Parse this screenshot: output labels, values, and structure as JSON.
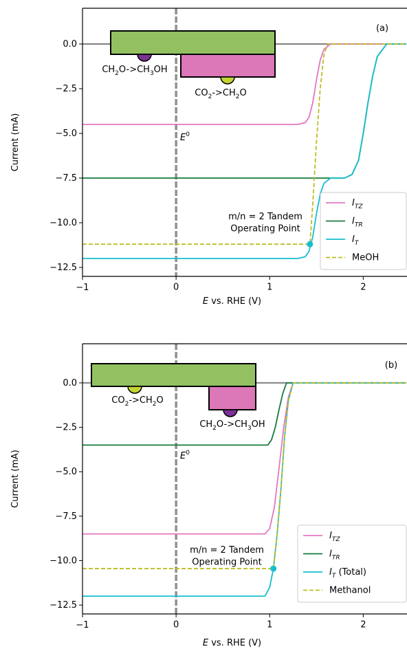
{
  "chart_data": [
    {
      "type": "line",
      "panel_label": "(a)",
      "xlabel": "$E$ vs. RHE (V)",
      "ylabel": "Current (mA)",
      "xlim": [
        -1,
        2.46
      ],
      "ylim": [
        -13,
        2
      ],
      "xticks": [
        {
          "value": -1,
          "label": "−1"
        },
        0,
        1,
        2
      ],
      "yticks": [
        {
          "value": 0,
          "label": "0.0"
        },
        {
          "value": -2.5,
          "label": "−2.5"
        },
        {
          "value": -5,
          "label": "−5.0"
        },
        {
          "value": -7.5,
          "label": "−7.5"
        },
        {
          "value": -10,
          "label": "−10.0"
        },
        {
          "value": -12.5,
          "label": "−12.5"
        }
      ],
      "hlines": [
        0
      ],
      "vlines": [
        0
      ],
      "e0_label": "$E^{0}$",
      "annotation": "m/n = 2 Tandem\nOperating Point",
      "operating_point": {
        "x": 1.43,
        "y": -11.2,
        "color": "#17becf"
      },
      "inset_labels": [
        "CH$_2$O->CH$_3$OH",
        "CO$_2$->CH$_2$O"
      ],
      "legend": "lower right",
      "series": [
        {
          "name": "$I_{TZ}$",
          "color": "#e377c2",
          "dash": false,
          "x": [
            -1,
            1.3,
            1.38,
            1.42,
            1.46,
            1.5,
            1.54,
            1.58,
            1.65,
            2.46
          ],
          "values": [
            -4.5,
            -4.5,
            -4.4,
            -4.1,
            -3.3,
            -2.0,
            -0.9,
            -0.3,
            0,
            0
          ]
        },
        {
          "name": "$I_{TR}$",
          "color": "#167a3c",
          "dash": false,
          "x": [
            -1,
            1.8,
            1.88,
            1.95,
            2.0,
            2.05,
            2.1,
            2.15,
            2.25,
            2.46
          ],
          "values": [
            -7.5,
            -7.5,
            -7.3,
            -6.5,
            -5.0,
            -3.3,
            -1.8,
            -0.7,
            0,
            0
          ]
        },
        {
          "name": "$I_{T}$",
          "color": "#17becf",
          "dash": false,
          "x": [
            -1,
            1.3,
            1.38,
            1.42,
            1.46,
            1.5,
            1.54,
            1.58,
            1.65,
            1.8,
            1.88,
            1.95,
            2.0,
            2.05,
            2.1,
            2.15,
            2.25,
            2.46
          ],
          "values": [
            -12,
            -12,
            -11.9,
            -11.6,
            -10.8,
            -9.5,
            -8.4,
            -7.8,
            -7.5,
            -7.5,
            -7.3,
            -6.5,
            -5.0,
            -3.3,
            -1.8,
            -0.7,
            0,
            0
          ]
        },
        {
          "name": "MeOH",
          "color": "#bcbd22",
          "dash": true,
          "x": [
            -1,
            1.43,
            1.46,
            1.5,
            1.54,
            1.58,
            1.62,
            2.46
          ],
          "values": [
            -11.2,
            -11.2,
            -9.0,
            -5.5,
            -2.5,
            -0.6,
            0,
            0
          ]
        }
      ]
    },
    {
      "type": "line",
      "panel_label": "(b)",
      "xlabel": "$E$ vs. RHE (V)",
      "ylabel": "Current (mA)",
      "xlim": [
        -1,
        2.46
      ],
      "ylim": [
        -13,
        2.2
      ],
      "xticks": [
        {
          "value": -1,
          "label": "−1"
        },
        0,
        1,
        2
      ],
      "yticks": [
        {
          "value": 0,
          "label": "0.0"
        },
        {
          "value": -2.5,
          "label": "−2.5"
        },
        {
          "value": -5,
          "label": "−5.0"
        },
        {
          "value": -7.5,
          "label": "−7.5"
        },
        {
          "value": -10,
          "label": "−10.0"
        },
        {
          "value": -12.5,
          "label": "−12.5"
        }
      ],
      "hlines": [
        0
      ],
      "vlines": [
        0
      ],
      "e0_label": "$E^{0}$",
      "annotation": "m/n = 2 Tandem\nOperating Point",
      "operating_point": {
        "x": 1.04,
        "y": -10.45,
        "color": "#17becf"
      },
      "inset_labels": [
        "CO$_2$->CH$_2$O",
        "CH$_2$O->CH$_3$OH"
      ],
      "legend": "lower right",
      "series": [
        {
          "name": "$I_{TZ}$",
          "color": "#e377c2",
          "dash": false,
          "x": [
            -1,
            0.95,
            1.0,
            1.05,
            1.1,
            1.15,
            1.2,
            1.25,
            2.46
          ],
          "values": [
            -8.5,
            -8.5,
            -8.2,
            -7.0,
            -4.8,
            -2.5,
            -0.8,
            0,
            0
          ]
        },
        {
          "name": "$I_{TR}$",
          "color": "#167a3c",
          "dash": false,
          "x": [
            -1,
            0.98,
            1.02,
            1.06,
            1.1,
            1.14,
            1.18,
            2.46
          ],
          "values": [
            -3.5,
            -3.5,
            -3.2,
            -2.5,
            -1.5,
            -0.6,
            0,
            0
          ]
        },
        {
          "name": "$I_{T}$ (Total)",
          "color": "#17becf",
          "dash": false,
          "x": [
            -1,
            0.95,
            1.0,
            1.04,
            1.08,
            1.12,
            1.16,
            1.2,
            1.25,
            2.46
          ],
          "values": [
            -12,
            -12,
            -11.5,
            -10.45,
            -8.5,
            -6.0,
            -3.0,
            -1.0,
            0,
            0
          ]
        },
        {
          "name": "Methanol",
          "color": "#bcbd22",
          "dash": true,
          "x": [
            -1,
            1.04,
            1.08,
            1.12,
            1.16,
            1.2,
            1.25,
            2.46
          ],
          "values": [
            -10.45,
            -10.45,
            -8.5,
            -6.0,
            -3.0,
            -1.0,
            0,
            0
          ]
        }
      ]
    }
  ]
}
